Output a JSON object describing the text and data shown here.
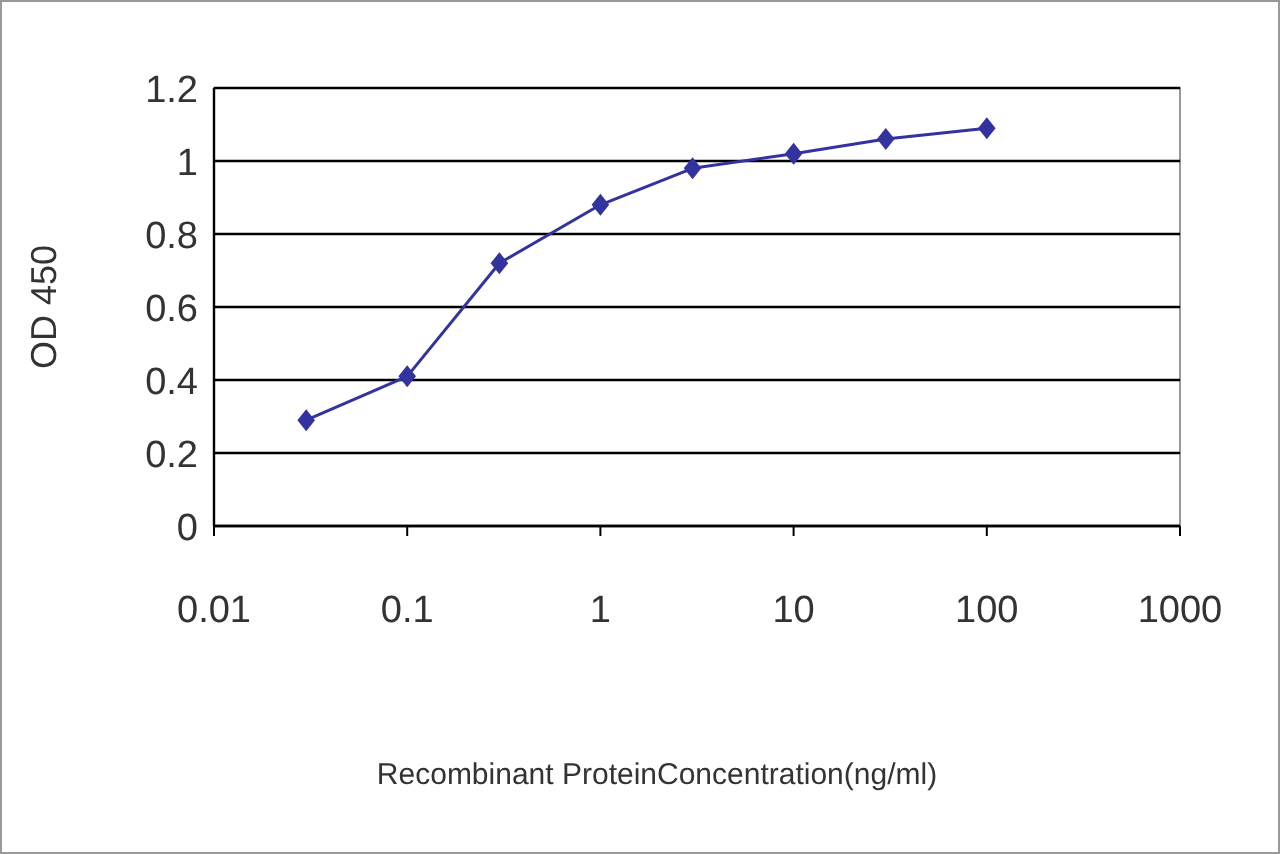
{
  "chart_data": {
    "type": "line",
    "xlabel": "Recombinant ProteinConcentration(ng/ml)",
    "ylabel": "OD 450",
    "x": [
      0.03,
      0.1,
      0.3,
      1,
      3,
      10,
      30,
      100
    ],
    "series": [
      {
        "color": "#3333a0",
        "values": [
          0.29,
          0.41,
          0.72,
          0.88,
          0.98,
          1.02,
          1.06,
          1.09
        ]
      }
    ],
    "log": "x",
    "xlim": [
      0.01,
      1000
    ],
    "xticks": [
      0.01,
      0.1,
      1,
      10,
      100,
      1000
    ],
    "ylim": [
      0,
      1.2
    ],
    "yticks": [
      0,
      0.2,
      0.4,
      0.6,
      0.8,
      1,
      1.2
    ],
    "grid": "y",
    "marker": "diamond",
    "line_style": "solid"
  }
}
